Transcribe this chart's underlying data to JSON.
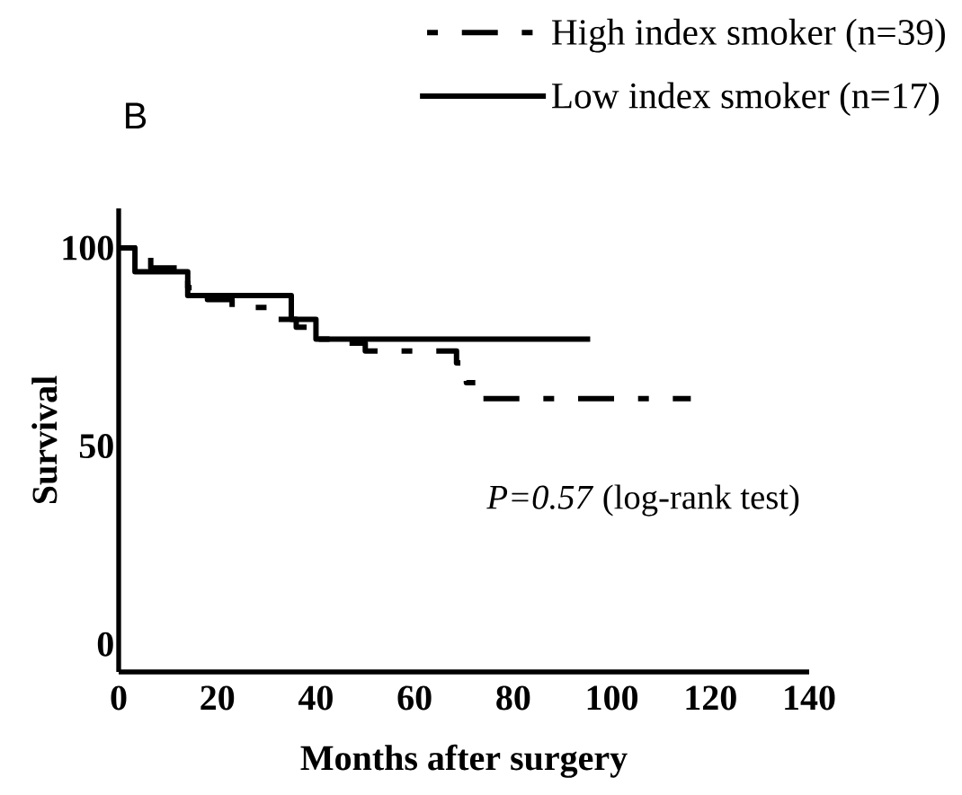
{
  "chart_data": {
    "type": "step",
    "xlabel": "Months after surgery",
    "ylabel": "Survival",
    "xlim": [
      0,
      140
    ],
    "ylim": [
      -7,
      110
    ],
    "xticks": [
      0,
      20,
      40,
      60,
      80,
      100,
      120,
      140
    ],
    "yticks": [
      0,
      50,
      100
    ],
    "legend": "top right",
    "series": [
      {
        "name": "High index smoker (n=39)",
        "color": "#000000",
        "line_style": "dashed",
        "x": [
          0,
          6.5,
          14,
          18,
          23,
          32,
          36,
          40,
          45,
          50,
          68.5,
          70.5,
          73,
          116
        ],
        "values": [
          100,
          95,
          90,
          87,
          85,
          82,
          80,
          77,
          76,
          74,
          71,
          66,
          62,
          62
        ]
      },
      {
        "name": "Low index smoker (n=17)",
        "color": "#000000",
        "line_style": "solid",
        "x": [
          0,
          3.3,
          14,
          35,
          40,
          95.6
        ],
        "values": [
          100,
          94,
          88,
          82,
          77,
          77
        ]
      }
    ],
    "annotations": [
      "B",
      "*P=0.57* (log-rank test)"
    ]
  }
}
